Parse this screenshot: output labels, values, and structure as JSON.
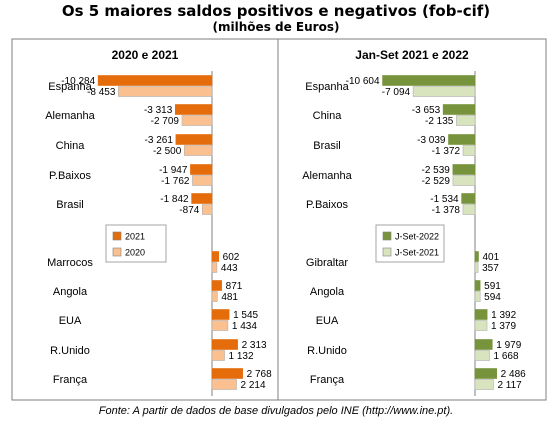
{
  "title": "Os 5 maiores saldos positivos e negativos (fob-cif)",
  "subtitle": "(milhões de Euros)",
  "source": "Fonte: A partir de dados de base divulgados pelo INE (http://www.ine.pt).",
  "colors": {
    "left_dark": "#e46c0a",
    "left_light": "#fac090",
    "right_dark": "#77933c",
    "right_light": "#d7e4bd",
    "border": "#7f7f7f"
  },
  "chart_data": [
    {
      "type": "bar",
      "orientation": "horizontal",
      "title": "2020 e 2021",
      "categories": [
        "Espanha",
        "Alemanha",
        "China",
        "P.Baixos",
        "Brasil",
        "Marrocos",
        "Angola",
        "EUA",
        "R.Unido",
        "França"
      ],
      "series": [
        {
          "name": "2021",
          "values": [
            -10284,
            -3313,
            -3261,
            -1947,
            -1842,
            602,
            871,
            1545,
            2313,
            2768
          ],
          "labels": [
            "-10 284",
            "-3 313",
            "-3 261",
            "-1 947",
            "-1 842",
            "602",
            "871",
            "1 545",
            "2 313",
            "2 768"
          ]
        },
        {
          "name": "2020",
          "values": [
            -8453,
            -2709,
            -2500,
            -1762,
            -874,
            443,
            481,
            1434,
            1132,
            2214
          ],
          "labels": [
            "-8 453",
            "-2 709",
            "-2 500",
            "-1 762",
            "-874",
            "443",
            "481",
            "1 434",
            "1 132",
            "2 214"
          ]
        }
      ]
    },
    {
      "type": "bar",
      "orientation": "horizontal",
      "title": "Jan-Set 2021 e 2022",
      "categories": [
        "Espanha",
        "China",
        "Brasil",
        "Alemanha",
        "P.Baixos",
        "Gibraltar",
        "Angola",
        "EUA",
        "R.Unido",
        "França"
      ],
      "series": [
        {
          "name": "J-Set-2022",
          "values": [
            -10604,
            -3653,
            -3039,
            -2539,
            -1534,
            401,
            591,
            1392,
            1979,
            2486
          ],
          "labels": [
            "-10 604",
            "-3 653",
            "-3 039",
            "-2 539",
            "-1 534",
            "401",
            "591",
            "1 392",
            "1 979",
            "2 486"
          ]
        },
        {
          "name": "J-Set-2021",
          "values": [
            -7094,
            -2135,
            -1372,
            -2529,
            -1378,
            357,
            594,
            1379,
            1668,
            2117
          ],
          "labels": [
            "-7 094",
            "-2 135",
            "-1 372",
            "-2 529",
            "-1 378",
            "357",
            "594",
            "1 379",
            "1 668",
            "2 117"
          ]
        }
      ]
    }
  ]
}
